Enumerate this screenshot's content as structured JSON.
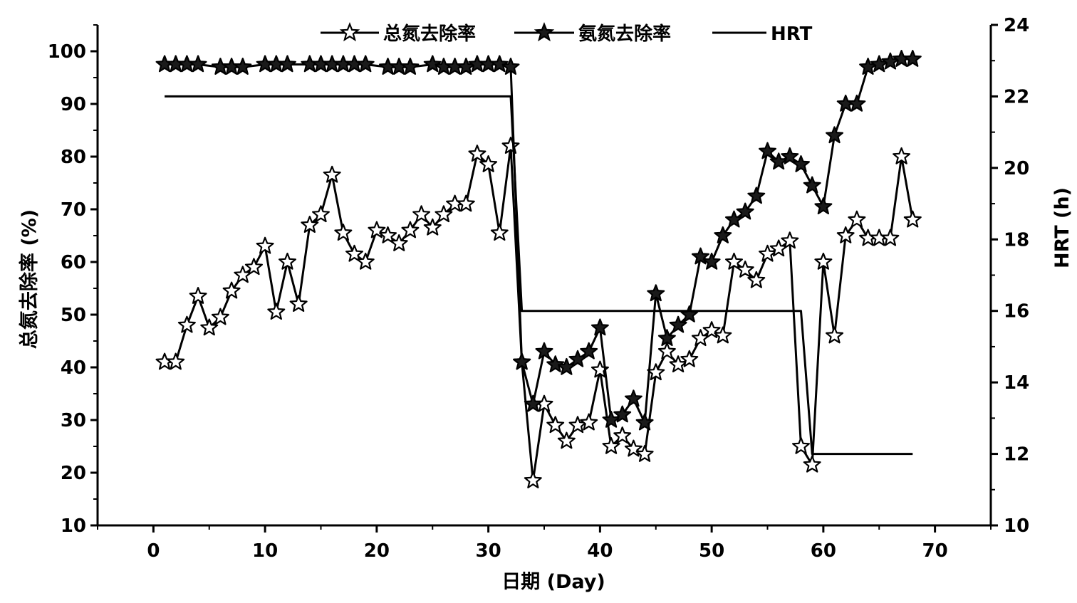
{
  "chart_data": {
    "type": "line",
    "xlabel": "日期 (Day)",
    "ylabel_left": "总氮去除率 (%)",
    "ylabel_right": "HRT (h)",
    "xlim": [
      -5,
      75
    ],
    "ylim_left": [
      10,
      105
    ],
    "ylim_right": [
      10,
      24
    ],
    "x_ticks": [
      0,
      10,
      20,
      30,
      40,
      50,
      60,
      70
    ],
    "y_left_ticks": [
      10,
      20,
      30,
      40,
      50,
      60,
      70,
      80,
      90,
      100
    ],
    "y_right_ticks": [
      10,
      12,
      14,
      16,
      18,
      20,
      22,
      24
    ],
    "grid": false,
    "legend_position": "top",
    "series": [
      {
        "name": "总氮去除率",
        "axis": "left",
        "marker": "open-star",
        "x": [
          1,
          2,
          3,
          4,
          5,
          6,
          7,
          8,
          9,
          10,
          11,
          12,
          13,
          14,
          15,
          16,
          17,
          18,
          19,
          20,
          21,
          22,
          23,
          24,
          25,
          26,
          27,
          28,
          29,
          30,
          31,
          32,
          33,
          34,
          35,
          36,
          37,
          38,
          39,
          40,
          41,
          42,
          43,
          44,
          45,
          46,
          47,
          48,
          49,
          50,
          51,
          52,
          53,
          54,
          55,
          56,
          57,
          58,
          59,
          60,
          61,
          62,
          63,
          64,
          65,
          66,
          67,
          68
        ],
        "values": [
          41,
          41,
          48,
          53.5,
          47.5,
          49.5,
          54.5,
          57.5,
          59,
          63,
          50.5,
          60,
          52,
          67,
          69,
          76.5,
          65.5,
          61.5,
          60,
          66,
          65,
          63.5,
          66,
          69,
          66.5,
          69,
          71,
          71,
          80.5,
          78.5,
          65.5,
          82,
          41,
          18.5,
          33,
          29,
          26,
          29,
          29.5,
          39.5,
          25,
          27,
          24.5,
          23.5,
          39,
          43,
          40.5,
          41.5,
          45.5,
          47,
          46,
          60,
          58.5,
          56.5,
          61.5,
          62.5,
          64,
          25,
          21.5,
          60,
          46,
          65,
          68,
          64.5,
          64.5,
          64.5,
          80,
          68
        ]
      },
      {
        "name": "氨氮去除率",
        "axis": "left",
        "marker": "filled-star",
        "x": [
          1,
          2,
          3,
          4,
          6,
          7,
          8,
          10,
          11,
          12,
          14,
          15,
          16,
          17,
          18,
          19,
          21,
          22,
          23,
          25,
          26,
          27,
          28,
          29,
          30,
          31,
          32,
          33,
          34,
          35,
          36,
          37,
          38,
          39,
          40,
          41,
          42,
          43,
          44,
          45,
          46,
          47,
          48,
          49,
          50,
          51,
          52,
          53,
          54,
          55,
          56,
          57,
          58,
          59,
          60,
          61,
          62,
          63,
          64,
          65,
          66,
          67,
          68
        ],
        "values": [
          97.5,
          97.5,
          97.5,
          97.5,
          97,
          97,
          97,
          97.5,
          97.5,
          97.5,
          97.5,
          97.5,
          97.5,
          97.5,
          97.5,
          97.5,
          97,
          97,
          97,
          97.5,
          97,
          97,
          97,
          97.5,
          97.5,
          97.5,
          97,
          41,
          33,
          43,
          40.5,
          40,
          41.5,
          43,
          47.5,
          30,
          31,
          34,
          29.5,
          54,
          45.5,
          48,
          50,
          61,
          60,
          65,
          68,
          69.5,
          72.5,
          81,
          79,
          80,
          78.5,
          74.5,
          70.5,
          84,
          90,
          90,
          97,
          97.5,
          98,
          98.5,
          98.5
        ]
      },
      {
        "name": "HRT",
        "axis": "right",
        "marker": "none",
        "x": [
          1,
          32,
          33,
          58,
          59,
          68
        ],
        "values": [
          22,
          22,
          16,
          16,
          12,
          12
        ]
      }
    ]
  }
}
